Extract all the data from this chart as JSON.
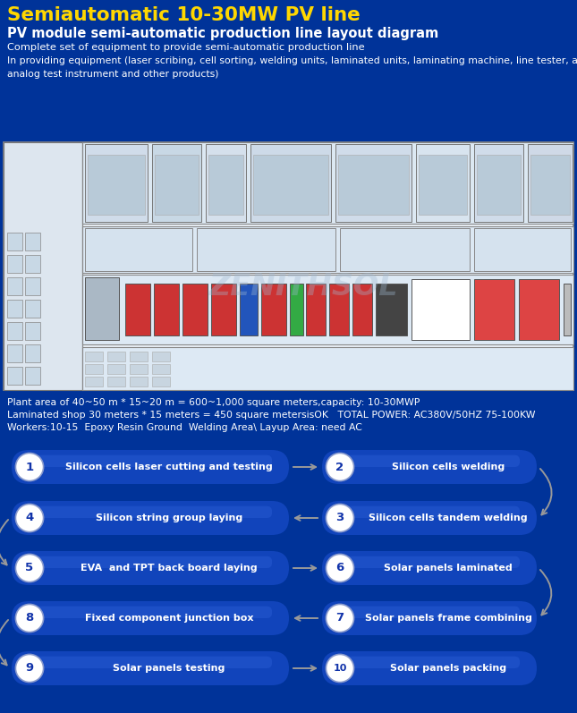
{
  "title_line1": "Semiautomatic 10-30MW PV line",
  "title_line2": "PV module semi-automatic production line layout diagram",
  "desc_line1": "Complete set of equipment to provide semi-automatic production line",
  "desc_line2": "In providing equipment (laser scribing, cell sorting, welding units, laminated units, laminating machine, line tester, automatic group box machine,",
  "desc_line3": "analog test instrument and other products)",
  "info_line1": "Plant area of 40~50 m * 15~20 m = 600~1,000 square meters,capacity: 10-30MWP",
  "info_line2": "Laminated shop 30 meters * 15 meters = 450 square metersisOK   TOTAL POWER: AC380V/50HZ 75-100KW",
  "info_line3": "Workers:10-15  Epoxy Resin Ground  Welding Area\\ Layup Area: need AC",
  "bg_color": "#003399",
  "diagram_outer_bg": "#c8d8e8",
  "diagram_inner_bg": "#dde8f2",
  "flow_bg": "#e8eef8",
  "title_color": "#FFD700",
  "white_color": "#ffffff",
  "steps": [
    {
      "num": "1",
      "text": "Silicon cells laser cutting and testing",
      "row": 0,
      "col": 0
    },
    {
      "num": "2",
      "text": "Silicon cells welding",
      "row": 0,
      "col": 1
    },
    {
      "num": "4",
      "text": "Silicon string group laying",
      "row": 1,
      "col": 0
    },
    {
      "num": "3",
      "text": "Silicon cells tandem welding",
      "row": 1,
      "col": 1
    },
    {
      "num": "5",
      "text": "EVA  and TPT back board laying",
      "row": 2,
      "col": 0
    },
    {
      "num": "6",
      "text": "Solar panels laminated",
      "row": 2,
      "col": 1
    },
    {
      "num": "8",
      "text": "Fixed component junction box",
      "row": 3,
      "col": 0
    },
    {
      "num": "7",
      "text": "Solar panels frame combining",
      "row": 3,
      "col": 1
    },
    {
      "num": "9",
      "text": "Solar panels testing",
      "row": 4,
      "col": 0
    },
    {
      "num": "10",
      "text": "Solar panels packing",
      "row": 4,
      "col": 1
    }
  ],
  "pill_color": "#1144bb",
  "pill_text_color": "#ffffff",
  "arrow_color": "#999999",
  "watermark": "ZENITHSOL"
}
